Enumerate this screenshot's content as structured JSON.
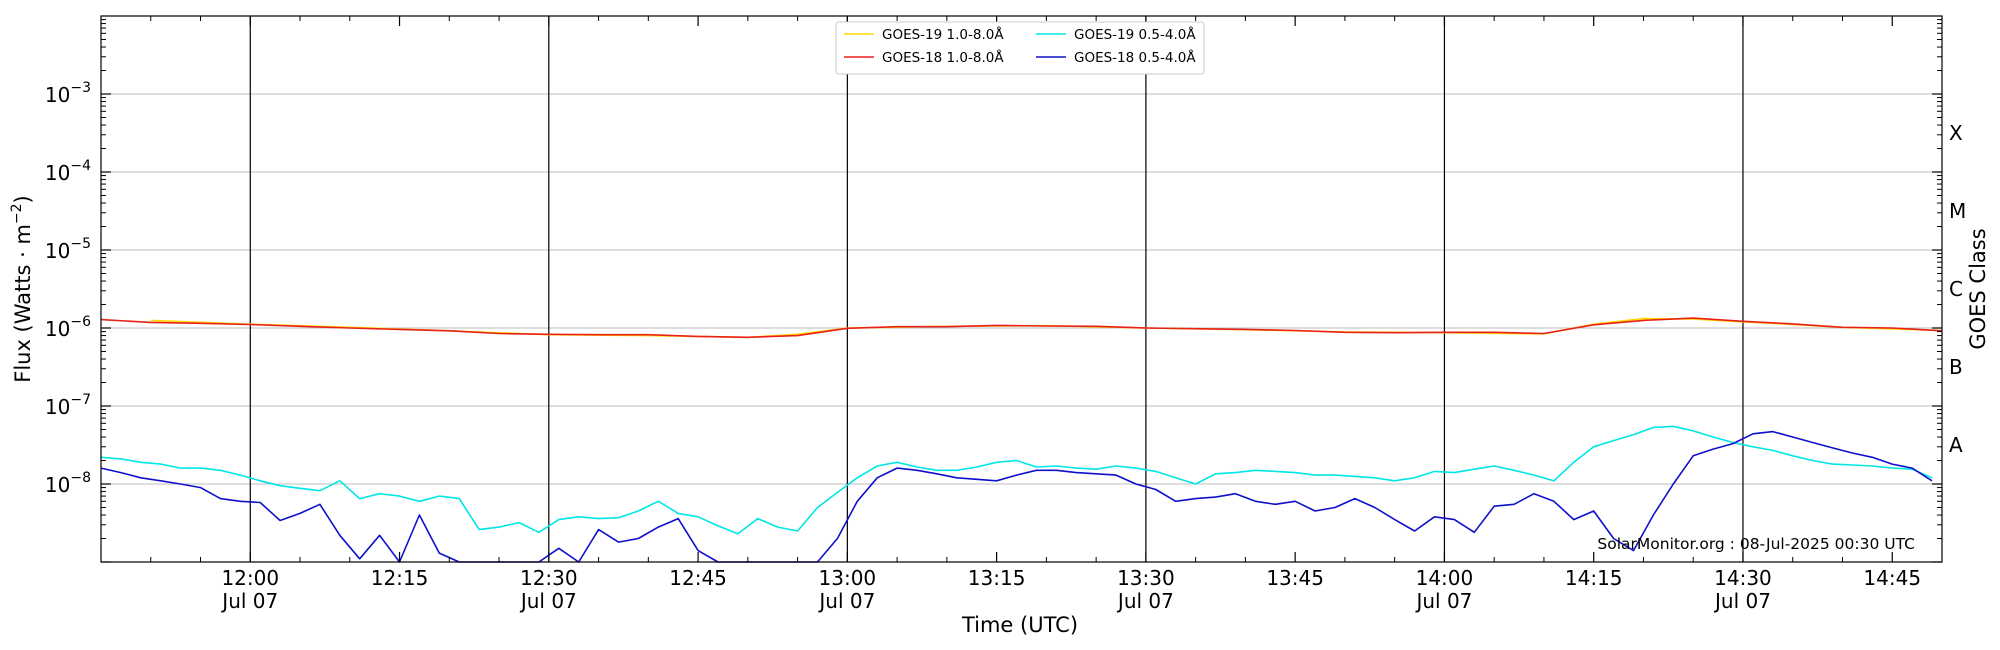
{
  "chart_data": {
    "type": "line",
    "ylabel_pre": "Flux (Watts · m",
    "ylabel_exp": "−2",
    "ylabel_post": ")",
    "xlabel": "Time (UTC)",
    "right_label": "GOES Class",
    "credit": "SolarMonitor.org : 08-Jul-2025 00:30 UTC",
    "y_scale": "log",
    "ylim": [
      1e-09,
      0.01
    ],
    "xlim_minutes_after_1200": [
      -15,
      170
    ],
    "grid_y": true,
    "legend_position": "top-center",
    "y_ticks": [
      {
        "mantissa": "10",
        "exp": "−3",
        "value": 0.001
      },
      {
        "mantissa": "10",
        "exp": "−4",
        "value": 0.0001
      },
      {
        "mantissa": "10",
        "exp": "−5",
        "value": 1e-05
      },
      {
        "mantissa": "10",
        "exp": "−6",
        "value": 1e-06
      },
      {
        "mantissa": "10",
        "exp": "−7",
        "value": 1e-07
      },
      {
        "mantissa": "10",
        "exp": "−8",
        "value": 1e-08
      }
    ],
    "class_ticks": [
      {
        "label": "X",
        "value": 0.000316
      },
      {
        "label": "M",
        "value": 3.16e-05
      },
      {
        "label": "C",
        "value": 3.16e-06
      },
      {
        "label": "B",
        "value": 3.16e-07
      },
      {
        "label": "A",
        "value": 3.16e-08
      }
    ],
    "x_ticks": [
      {
        "t": 0,
        "label": "12:00",
        "sub": "Jul 07",
        "vline": true
      },
      {
        "t": 15,
        "label": "12:15",
        "sub": "",
        "vline": false
      },
      {
        "t": 30,
        "label": "12:30",
        "sub": "Jul 07",
        "vline": true
      },
      {
        "t": 45,
        "label": "12:45",
        "sub": "",
        "vline": false
      },
      {
        "t": 60,
        "label": "13:00",
        "sub": "Jul 07",
        "vline": true
      },
      {
        "t": 75,
        "label": "13:15",
        "sub": "",
        "vline": false
      },
      {
        "t": 90,
        "label": "13:30",
        "sub": "Jul 07",
        "vline": true
      },
      {
        "t": 105,
        "label": "13:45",
        "sub": "",
        "vline": false
      },
      {
        "t": 120,
        "label": "14:00",
        "sub": "Jul 07",
        "vline": true
      },
      {
        "t": 135,
        "label": "14:15",
        "sub": "",
        "vline": false
      },
      {
        "t": 150,
        "label": "14:30",
        "sub": "Jul 07",
        "vline": true
      },
      {
        "t": 165,
        "label": "14:45",
        "sub": "",
        "vline": false
      }
    ],
    "series": [
      {
        "name": "GOES-19 1.0-8.0Å",
        "color": "#ffd700",
        "x": [
          -10,
          0,
          10,
          20,
          30,
          40,
          50,
          55,
          60,
          70,
          80,
          90,
          100,
          110,
          120,
          130,
          135,
          140,
          145,
          150,
          160,
          170
        ],
        "y": [
          1.25e-06,
          1.12e-06,
          1.02e-06,
          9.2e-07,
          8.2e-07,
          8e-07,
          7.6e-07,
          8.3e-07,
          1e-06,
          1.05e-06,
          1.07e-06,
          1e-06,
          9.5e-07,
          8.9e-07,
          8.7e-07,
          8.4e-07,
          1.12e-06,
          1.32e-06,
          1.3e-06,
          1.2e-06,
          1.02e-06,
          9.3e-07
        ]
      },
      {
        "name": "GOES-18 1.0-8.0Å",
        "color": "#e8221b",
        "x": [
          -15,
          -10,
          -5,
          0,
          5,
          10,
          15,
          20,
          25,
          30,
          35,
          40,
          45,
          50,
          55,
          60,
          65,
          70,
          75,
          80,
          85,
          90,
          95,
          100,
          105,
          110,
          115,
          120,
          125,
          130,
          135,
          140,
          145,
          150,
          155,
          160,
          165,
          170
        ],
        "y": [
          1.28e-06,
          1.18e-06,
          1.15e-06,
          1.11e-06,
          1.05e-06,
          1e-06,
          9.6e-07,
          9.2e-07,
          8.5e-07,
          8.3e-07,
          8.2e-07,
          8.2e-07,
          7.8e-07,
          7.6e-07,
          8e-07,
          9.9e-07,
          1.04e-06,
          1.04e-06,
          1.08e-06,
          1.06e-06,
          1.05e-06,
          1e-06,
          9.8e-07,
          9.6e-07,
          9.3e-07,
          8.8e-07,
          8.7e-07,
          8.8e-07,
          8.8e-07,
          8.5e-07,
          1.1e-06,
          1.25e-06,
          1.34e-06,
          1.22e-06,
          1.13e-06,
          1.02e-06,
          1e-06,
          9.2e-07
        ]
      },
      {
        "name": "GOES-19 0.5-4.0Å",
        "color": "#00e6e6",
        "x": [
          -15,
          -13,
          -11,
          -9,
          -7,
          -5,
          -3,
          -1,
          1,
          3,
          5,
          7,
          9,
          11,
          13,
          15,
          17,
          19,
          21,
          23,
          25,
          27,
          29,
          31,
          33,
          35,
          37,
          39,
          41,
          43,
          45,
          47,
          49,
          51,
          53,
          55,
          57,
          59,
          61,
          63,
          65,
          67,
          69,
          71,
          73,
          75,
          77,
          79,
          81,
          83,
          85,
          87,
          89,
          91,
          93,
          95,
          97,
          99,
          101,
          103,
          105,
          107,
          109,
          111,
          113,
          115,
          117,
          119,
          121,
          123,
          125,
          127,
          129,
          131,
          133,
          135,
          137,
          139,
          141,
          143,
          145,
          147,
          149,
          151,
          153,
          155,
          157,
          159,
          161,
          163,
          165,
          167,
          169
        ],
        "y": [
          2.2e-08,
          2.1e-08,
          1.9e-08,
          1.8e-08,
          1.6e-08,
          1.6e-08,
          1.5e-08,
          1.3e-08,
          1.1e-08,
          9.5e-09,
          8.8e-09,
          8.2e-09,
          1.1e-08,
          6.5e-09,
          7.5e-09,
          7e-09,
          6e-09,
          7e-09,
          6.5e-09,
          2.6e-09,
          2.8e-09,
          3.2e-09,
          2.4e-09,
          3.5e-09,
          3.8e-09,
          3.6e-09,
          3.7e-09,
          4.5e-09,
          6e-09,
          4.2e-09,
          3.8e-09,
          2.9e-09,
          2.3e-09,
          3.6e-09,
          2.8e-09,
          2.5e-09,
          5e-09,
          7.8e-09,
          1.2e-08,
          1.7e-08,
          1.9e-08,
          1.65e-08,
          1.5e-08,
          1.5e-08,
          1.65e-08,
          1.9e-08,
          2e-08,
          1.65e-08,
          1.7e-08,
          1.6e-08,
          1.55e-08,
          1.7e-08,
          1.6e-08,
          1.45e-08,
          1.2e-08,
          1e-08,
          1.35e-08,
          1.4e-08,
          1.5e-08,
          1.45e-08,
          1.4e-08,
          1.3e-08,
          1.3e-08,
          1.25e-08,
          1.2e-08,
          1.1e-08,
          1.2e-08,
          1.45e-08,
          1.4e-08,
          1.55e-08,
          1.7e-08,
          1.5e-08,
          1.3e-08,
          1.1e-08,
          1.9e-08,
          3e-08,
          3.6e-08,
          4.3e-08,
          5.3e-08,
          5.5e-08,
          4.8e-08,
          4e-08,
          3.4e-08,
          3e-08,
          2.7e-08,
          2.3e-08,
          2e-08,
          1.8e-08,
          1.75e-08,
          1.7e-08,
          1.6e-08,
          1.55e-08,
          1.2e-08
        ]
      },
      {
        "name": "GOES-18 0.5-4.0Å",
        "color": "#1010cc",
        "x": [
          -15,
          -13,
          -11,
          -9,
          -7,
          -5,
          -3,
          -1,
          1,
          3,
          5,
          7,
          9,
          11,
          13,
          15,
          17,
          19,
          21,
          23,
          25,
          27,
          29,
          31,
          33,
          35,
          37,
          39,
          41,
          43,
          45,
          47,
          49,
          51,
          53,
          55,
          57,
          59,
          61,
          63,
          65,
          67,
          69,
          71,
          73,
          75,
          77,
          79,
          81,
          83,
          85,
          87,
          89,
          91,
          93,
          95,
          97,
          99,
          101,
          103,
          105,
          107,
          109,
          111,
          113,
          115,
          117,
          119,
          121,
          123,
          125,
          127,
          129,
          131,
          133,
          135,
          137,
          139,
          141,
          143,
          145,
          147,
          149,
          151,
          153,
          155,
          157,
          159,
          161,
          163,
          165,
          167,
          169
        ],
        "y": [
          1.6e-08,
          1.4e-08,
          1.2e-08,
          1.1e-08,
          1e-08,
          9e-09,
          6.5e-09,
          6e-09,
          5.8e-09,
          3.4e-09,
          4.2e-09,
          5.5e-09,
          2.2e-09,
          1.1e-09,
          2.2e-09,
          1e-09,
          4e-09,
          1.3e-09,
          1e-09,
          1e-09,
          1e-09,
          1e-09,
          1e-09,
          1.5e-09,
          1e-09,
          2.6e-09,
          1.8e-09,
          2e-09,
          2.8e-09,
          3.6e-09,
          1.4e-09,
          1e-09,
          1e-09,
          1e-09,
          1e-09,
          1e-09,
          1e-09,
          2e-09,
          6e-09,
          1.2e-08,
          1.6e-08,
          1.5e-08,
          1.35e-08,
          1.2e-08,
          1.15e-08,
          1.1e-08,
          1.3e-08,
          1.5e-08,
          1.5e-08,
          1.4e-08,
          1.35e-08,
          1.3e-08,
          1e-08,
          8.5e-09,
          6e-09,
          6.5e-09,
          6.8e-09,
          7.5e-09,
          6e-09,
          5.5e-09,
          6e-09,
          4.5e-09,
          5e-09,
          6.5e-09,
          5e-09,
          3.5e-09,
          2.5e-09,
          3.8e-09,
          3.5e-09,
          2.4e-09,
          5.2e-09,
          5.5e-09,
          7.5e-09,
          6e-09,
          3.5e-09,
          4.5e-09,
          2e-09,
          1.4e-09,
          4e-09,
          1e-08,
          2.3e-08,
          2.8e-08,
          3.3e-08,
          4.4e-08,
          4.7e-08,
          4e-08,
          3.4e-08,
          2.9e-08,
          2.5e-08,
          2.2e-08,
          1.8e-08,
          1.6e-08,
          1.1e-08
        ]
      }
    ]
  }
}
